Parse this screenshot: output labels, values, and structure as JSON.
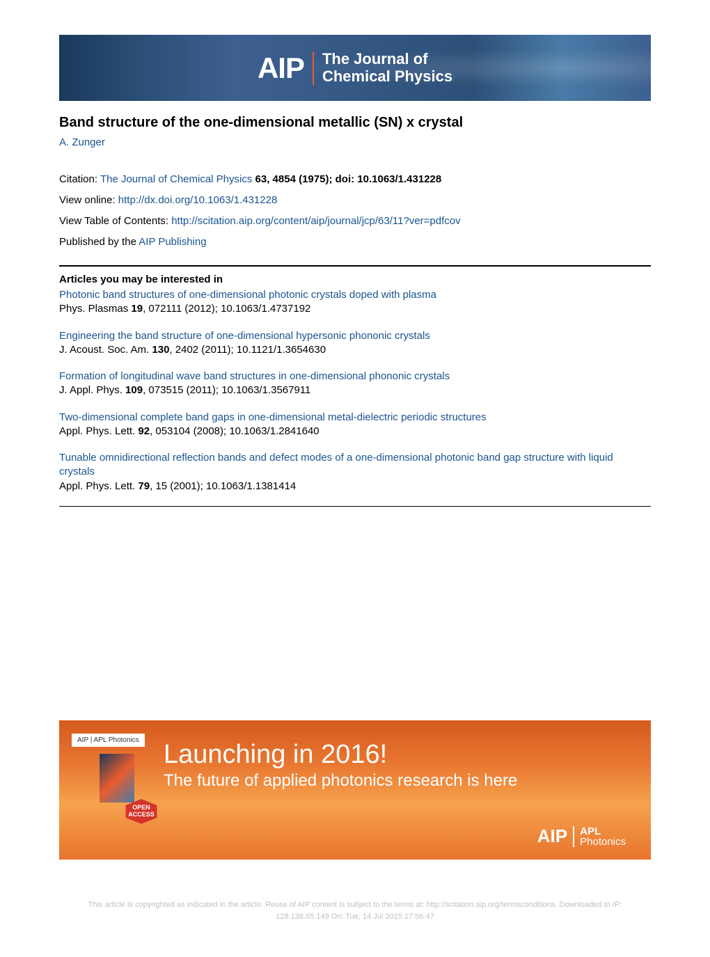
{
  "header": {
    "logo_text": "AIP",
    "journal_line1": "The Journal of",
    "journal_line2": "Chemical Physics"
  },
  "article": {
    "title": "Band structure of the one-dimensional metallic (SN) x crystal",
    "author": "A. Zunger"
  },
  "citation": {
    "prefix": "Citation: ",
    "journal": "The Journal of Chemical Physics",
    "vol_info": " 63, 4854 (1975); doi: 10.1063/1.431228",
    "view_online_label": "View online: ",
    "view_online_url": "http://dx.doi.org/10.1063/1.431228",
    "toc_label": "View Table of Contents: ",
    "toc_url": "http://scitation.aip.org/content/aip/journal/jcp/63/11?ver=pdfcov",
    "published_label": "Published by the ",
    "publisher": "AIP Publishing"
  },
  "related": {
    "heading": "Articles you may be interested in",
    "items": [
      {
        "title": "Photonic band structures of one-dimensional photonic crystals doped with plasma",
        "cite_pre": "Phys. Plasmas ",
        "cite_vol": "19",
        "cite_post": ", 072111 (2012); 10.1063/1.4737192"
      },
      {
        "title": "Engineering the band structure of one-dimensional hypersonic phononic crystals",
        "cite_pre": "J. Acoust. Soc. Am. ",
        "cite_vol": "130",
        "cite_post": ", 2402 (2011); 10.1121/1.3654630"
      },
      {
        "title": "Formation of longitudinal wave band structures in one-dimensional phononic crystals",
        "cite_pre": "J. Appl. Phys. ",
        "cite_vol": "109",
        "cite_post": ", 073515 (2011); 10.1063/1.3567911"
      },
      {
        "title": "Two-dimensional complete band gaps in one-dimensional metal-dielectric periodic structures",
        "cite_pre": "Appl. Phys. Lett. ",
        "cite_vol": "92",
        "cite_post": ", 053104 (2008); 10.1063/1.2841640"
      },
      {
        "title": "Tunable omnidirectional reflection bands and defect modes of a one-dimensional photonic band gap structure with liquid crystals",
        "cite_pre": "Appl. Phys. Lett. ",
        "cite_vol": "79",
        "cite_post": ", 15 (2001); 10.1063/1.1381414"
      }
    ]
  },
  "ad": {
    "top_badge": "AIP | APL Photonics",
    "open_access": "OPEN ACCESS",
    "main": "Launching in 2016!",
    "sub": "The future of applied photonics research is here",
    "logo_aip": "AIP",
    "logo_apl": "APL",
    "logo_photonics": "Photonics"
  },
  "footer": {
    "line1": "This article is copyrighted as indicated in the article. Reuse of AIP content is subject to the terms at: http://scitation.aip.org/termsconditions. Downloaded to  IP:",
    "line2": "128.138.65.149 On: Tue, 14 Jul 2015 17:56:47"
  },
  "colors": {
    "link": "#1a5490",
    "banner_accent": "#eb5c2e",
    "ad_bg": "#e87530"
  }
}
